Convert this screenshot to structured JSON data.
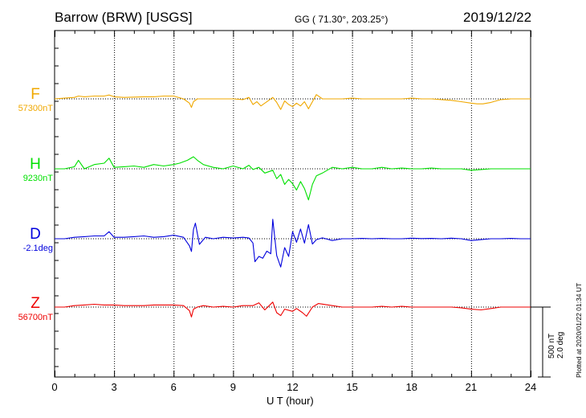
{
  "header": {
    "station": "Barrow (BRW)  [USGS]",
    "coords": "GG ( 71.30°, 203.25°)",
    "date": "2019/12/22"
  },
  "scale": {
    "nt": "500 nT",
    "deg": "2.0 deg"
  },
  "plotted_note": "Plotted at 2020/01/22 01:34 UT",
  "chart_data": {
    "type": "line",
    "title": "Barrow (BRW)  [USGS]",
    "xlabel": "U T (hour)",
    "ylabel": "",
    "xlim": [
      0,
      24
    ],
    "x_ticks": [
      "0",
      "3",
      "6",
      "9",
      "12",
      "15",
      "18",
      "21",
      "24"
    ],
    "grid": true,
    "series": [
      {
        "name": "F",
        "baseline_label": "57300nT",
        "color": "#f0a800",
        "x": [
          0,
          0.5,
          1,
          1.2,
          1.5,
          2,
          2.5,
          2.75,
          3,
          3.5,
          4,
          4.5,
          5,
          5.5,
          6,
          6.5,
          6.8,
          6.9,
          7,
          7.2,
          7.5,
          8,
          8.5,
          9,
          9.5,
          9.8,
          10,
          10.2,
          10.4,
          10.6,
          10.8,
          11,
          11.2,
          11.4,
          11.6,
          11.8,
          12,
          12.2,
          12.4,
          12.6,
          12.8,
          13,
          13.2,
          13.5,
          14,
          14.5,
          15,
          15.5,
          16,
          16.5,
          17,
          17.5,
          18,
          18.5,
          19,
          19.5,
          20,
          20.5,
          21,
          21.3,
          21.6,
          22,
          22.5,
          23,
          23.5,
          24
        ],
        "y": [
          0,
          10,
          20,
          40,
          30,
          40,
          40,
          55,
          30,
          20,
          25,
          30,
          30,
          40,
          40,
          0,
          -60,
          -120,
          -40,
          0,
          0,
          0,
          0,
          0,
          -10,
          20,
          -80,
          -40,
          -100,
          -60,
          -20,
          20,
          -50,
          -150,
          -30,
          -80,
          -110,
          -60,
          -100,
          -40,
          -140,
          -40,
          60,
          0,
          0,
          0,
          10,
          0,
          0,
          0,
          0,
          0,
          10,
          0,
          0,
          -10,
          -20,
          -40,
          -60,
          -70,
          -70,
          -50,
          -10,
          0,
          0,
          0
        ]
      },
      {
        "name": "H",
        "baseline_label": "9230nT",
        "color": "#00e000",
        "x": [
          0,
          0.5,
          1,
          1.2,
          1.5,
          2,
          2.5,
          2.75,
          3,
          3.5,
          4,
          4.5,
          5,
          5.5,
          6,
          6.3,
          6.7,
          7,
          7.2,
          7.5,
          8,
          8.5,
          9,
          9.5,
          9.8,
          10,
          10.3,
          10.6,
          11,
          11.2,
          11.4,
          11.6,
          11.8,
          12,
          12.2,
          12.4,
          12.6,
          12.8,
          13,
          13.2,
          13.5,
          14,
          14.5,
          15,
          15.5,
          16,
          16.5,
          17,
          17.5,
          18,
          18.5,
          19,
          19.5,
          20,
          20.5,
          21,
          21.5,
          22,
          22.5,
          23,
          23.5,
          24
        ],
        "y": [
          0,
          0,
          30,
          120,
          0,
          60,
          80,
          150,
          20,
          30,
          40,
          20,
          60,
          40,
          60,
          80,
          120,
          170,
          120,
          60,
          20,
          0,
          40,
          0,
          50,
          -10,
          20,
          -60,
          -20,
          -140,
          -80,
          -220,
          -150,
          -210,
          -300,
          -180,
          -280,
          -440,
          -220,
          -100,
          -60,
          20,
          0,
          20,
          0,
          0,
          20,
          0,
          10,
          0,
          0,
          10,
          0,
          0,
          0,
          -20,
          -10,
          0,
          0,
          0,
          0,
          0
        ]
      },
      {
        "name": "D",
        "baseline_label": "-2.1deg",
        "color": "#0000dd",
        "x": [
          0,
          0.5,
          1,
          1.5,
          2,
          2.5,
          2.75,
          3,
          3.5,
          4,
          4.5,
          5,
          5.5,
          6,
          6.5,
          6.8,
          6.9,
          7,
          7.1,
          7.3,
          7.6,
          8,
          8.5,
          9,
          9.5,
          9.8,
          10,
          10.1,
          10.3,
          10.5,
          10.7,
          10.9,
          11,
          11.2,
          11.4,
          11.6,
          11.8,
          12,
          12.2,
          12.4,
          12.6,
          12.8,
          13,
          13.2,
          13.5,
          14,
          14.5,
          15,
          15.5,
          16,
          16.5,
          17,
          17.5,
          18,
          18.5,
          19,
          19.5,
          20,
          20.5,
          21,
          21.5,
          22,
          22.5,
          23,
          23.5,
          24
        ],
        "y": [
          0,
          0,
          20,
          30,
          40,
          40,
          100,
          20,
          20,
          30,
          40,
          20,
          30,
          50,
          20,
          -100,
          -180,
          130,
          220,
          -80,
          20,
          0,
          20,
          10,
          20,
          10,
          -60,
          -1.3,
          -1.0,
          -1.1,
          -0.7,
          -0.85,
          1.1,
          -0.95,
          -1.6,
          -0.5,
          -1.0,
          0.4,
          -0.2,
          0.55,
          -0.25,
          0.8,
          -0.3,
          -0.05,
          0.05,
          -0.1,
          0,
          0,
          0.02,
          0,
          0.02,
          0,
          0,
          0.03,
          0.01,
          0.02,
          0,
          0.03,
          0,
          -0.1,
          -0.05,
          0,
          0,
          0.02,
          0,
          0
        ]
      },
      {
        "name": "Z",
        "baseline_label": "56700nT",
        "color": "#ee0000",
        "x": [
          0,
          0.5,
          1,
          1.5,
          2,
          2.5,
          3,
          3.5,
          4,
          4.5,
          5,
          5.5,
          6,
          6.5,
          6.8,
          6.9,
          7,
          7.2,
          7.5,
          8,
          8.5,
          9,
          9.5,
          10,
          10.3,
          10.6,
          11,
          11.2,
          11.4,
          11.6,
          12,
          12.2,
          12.5,
          12.7,
          13,
          13.3,
          14,
          14.5,
          15,
          15.5,
          16,
          16.5,
          17,
          17.5,
          18,
          18.5,
          19,
          19.5,
          20,
          20.5,
          21,
          21.5,
          22,
          22.5,
          23,
          23.5,
          24
        ],
        "y": [
          0,
          0,
          20,
          30,
          40,
          30,
          30,
          20,
          20,
          20,
          30,
          30,
          30,
          20,
          -50,
          -140,
          -30,
          0,
          20,
          0,
          10,
          0,
          20,
          20,
          60,
          -40,
          70,
          -80,
          -120,
          -30,
          -60,
          -20,
          -80,
          -130,
          0,
          50,
          20,
          0,
          0,
          0,
          0,
          10,
          0,
          10,
          0,
          0,
          0,
          0,
          0,
          -10,
          -30,
          -40,
          -20,
          0,
          0,
          0,
          0
        ]
      }
    ]
  }
}
